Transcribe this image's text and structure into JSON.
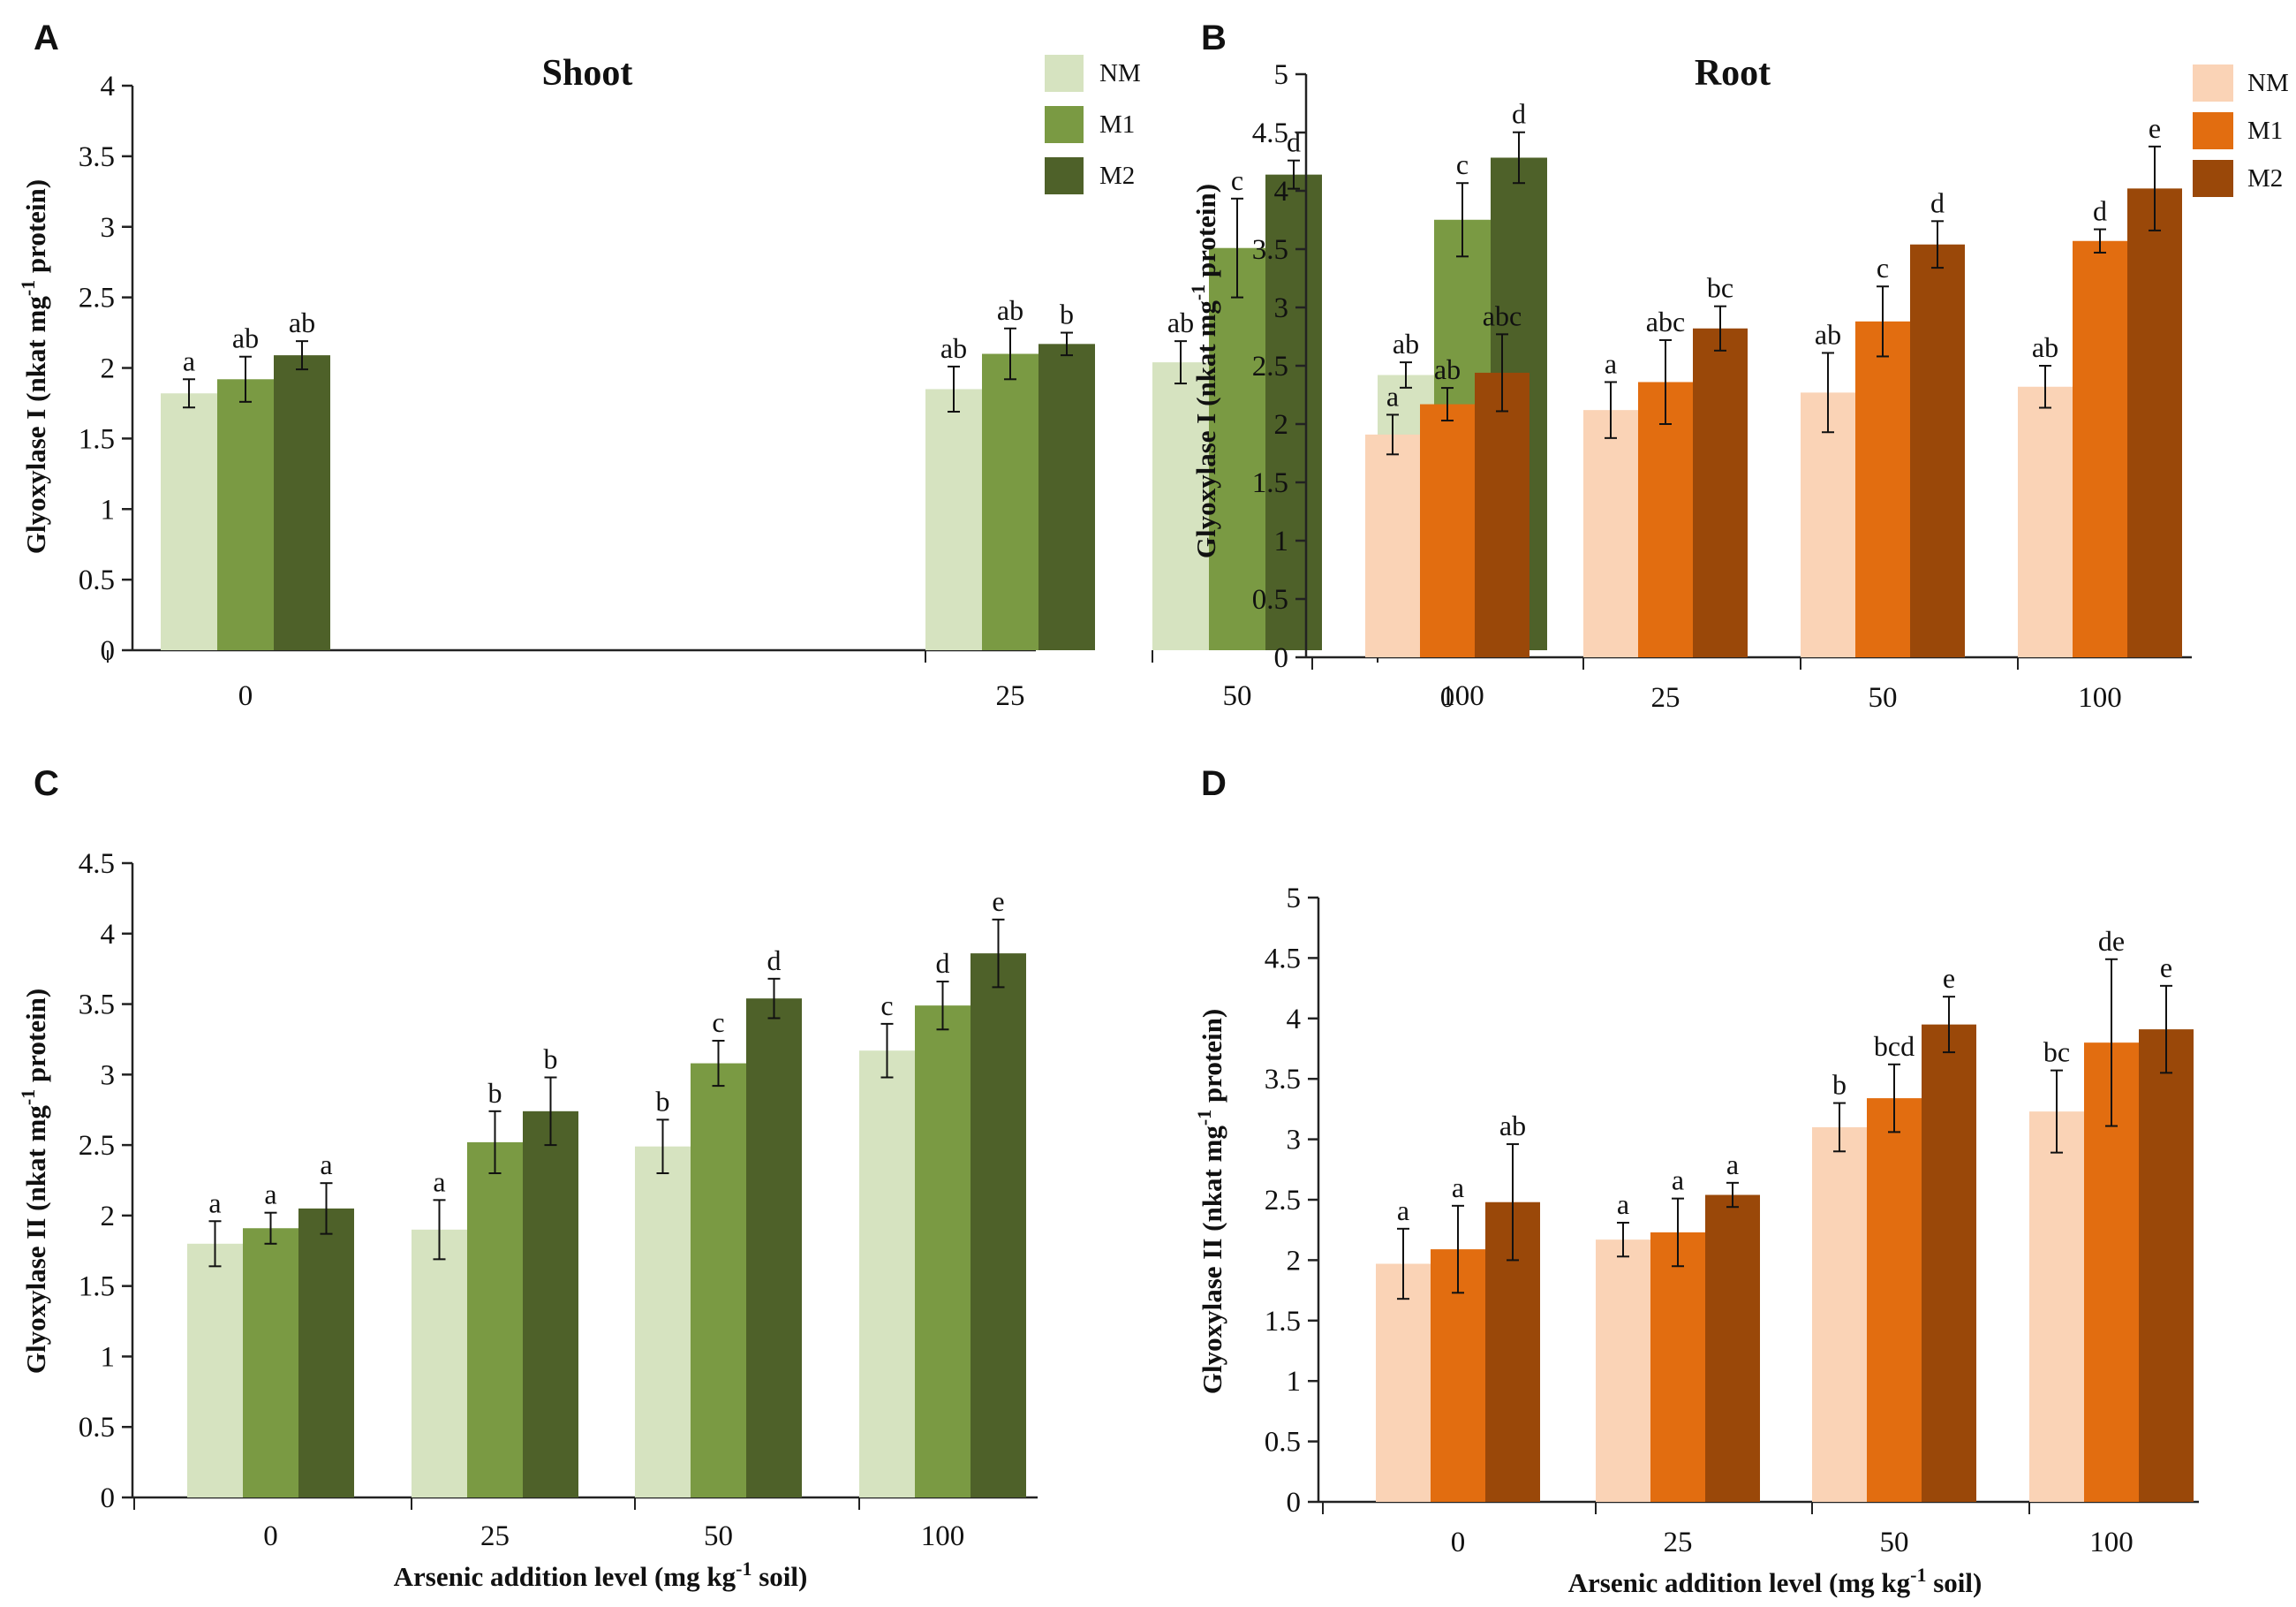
{
  "figure": {
    "x_title_main": "Arsenic addition level (mg kg",
    "x_title_sup": "-1",
    "x_title_end": " soil)"
  },
  "chart_data": [
    {
      "type": "bar",
      "panel": "A",
      "title": "Shoot",
      "ylabel_main": "Glyoxylase I (nkat mg",
      "ylabel_sup": "-1",
      "ylabel_end": " protein)",
      "xlabel": "",
      "categories": [
        "0",
        "25",
        "50",
        "100"
      ],
      "ylim": [
        0,
        4
      ],
      "yticks": [
        "0",
        "0.5",
        "1",
        "1.5",
        "2",
        "2.5",
        "3",
        "3.5",
        "4"
      ],
      "legend": {
        "position": "top-right",
        "labels": [
          "NM",
          "M1",
          "M2"
        ]
      },
      "colors": [
        "#d6e3c0",
        "#7a9a43",
        "#4e6129"
      ],
      "series": [
        {
          "name": "NM",
          "values": [
            1.82,
            1.85,
            2.04,
            1.95
          ],
          "errors": [
            0.1,
            0.16,
            0.15,
            0.09
          ],
          "letters": [
            "a",
            "ab",
            "ab",
            "ab"
          ]
        },
        {
          "name": "M1",
          "values": [
            1.92,
            2.1,
            2.85,
            3.05
          ],
          "errors": [
            0.16,
            0.18,
            0.35,
            0.26
          ],
          "letters": [
            "ab",
            "ab",
            "c",
            "c"
          ]
        },
        {
          "name": "M2",
          "values": [
            2.09,
            2.17,
            3.37,
            3.49
          ],
          "errors": [
            0.1,
            0.08,
            0.1,
            0.18
          ],
          "letters": [
            "ab",
            "b",
            "d",
            "d"
          ]
        }
      ]
    },
    {
      "type": "bar",
      "panel": "B",
      "title": "Root",
      "ylabel_main": "Glyoxylase I (nkat mg",
      "ylabel_sup": "-1",
      "ylabel_end": " protein)",
      "xlabel": "",
      "categories": [
        "0",
        "25",
        "50",
        "100"
      ],
      "ylim": [
        0,
        5
      ],
      "yticks": [
        "0",
        "0.5",
        "1",
        "1.5",
        "2",
        "2.5",
        "3",
        "3.5",
        "4",
        "4.5",
        "5"
      ],
      "legend": {
        "position": "top-right",
        "labels": [
          "NM",
          "M1",
          "M2"
        ]
      },
      "colors": [
        "#fad3b6",
        "#e26d10",
        "#9a4809"
      ],
      "series": [
        {
          "name": "NM",
          "values": [
            1.91,
            2.12,
            2.27,
            2.32
          ],
          "errors": [
            0.17,
            0.24,
            0.34,
            0.18
          ],
          "letters": [
            "a",
            "a",
            "ab",
            "ab"
          ]
        },
        {
          "name": "M1",
          "values": [
            2.17,
            2.36,
            2.88,
            3.57
          ],
          "errors": [
            0.14,
            0.36,
            0.3,
            0.1
          ],
          "letters": [
            "ab",
            "abc",
            "c",
            "d"
          ]
        },
        {
          "name": "M2",
          "values": [
            2.44,
            2.82,
            3.54,
            4.02
          ],
          "errors": [
            0.33,
            0.19,
            0.2,
            0.36
          ],
          "letters": [
            "abc",
            "bc",
            "d",
            "e"
          ]
        }
      ]
    },
    {
      "type": "bar",
      "panel": "C",
      "title": "",
      "ylabel_main": "Glyoxylase II (nkat mg",
      "ylabel_sup": "-1",
      "ylabel_end": " protein)",
      "xlabel": "Arsenic addition level (mg kg-1 soil)",
      "categories": [
        "0",
        "25",
        "50",
        "100"
      ],
      "ylim": [
        0,
        4.5
      ],
      "yticks": [
        "0",
        "0.5",
        "1",
        "1.5",
        "2",
        "2.5",
        "3",
        "3.5",
        "4",
        "4.5"
      ],
      "legend": null,
      "colors": [
        "#d6e3c0",
        "#7a9a43",
        "#4e6129"
      ],
      "series": [
        {
          "name": "NM",
          "values": [
            1.8,
            1.9,
            2.49,
            3.17
          ],
          "errors": [
            0.16,
            0.21,
            0.19,
            0.19
          ],
          "letters": [
            "a",
            "a",
            "b",
            "c"
          ]
        },
        {
          "name": "M1",
          "values": [
            1.91,
            2.52,
            3.08,
            3.49
          ],
          "errors": [
            0.11,
            0.22,
            0.16,
            0.17
          ],
          "letters": [
            "a",
            "b",
            "c",
            "d"
          ]
        },
        {
          "name": "M2",
          "values": [
            2.05,
            2.74,
            3.54,
            3.86
          ],
          "errors": [
            0.18,
            0.24,
            0.14,
            0.24
          ],
          "letters": [
            "a",
            "b",
            "d",
            "e"
          ]
        }
      ]
    },
    {
      "type": "bar",
      "panel": "D",
      "title": "",
      "ylabel_main": "Glyoxylase II (nkat mg",
      "ylabel_sup": "-1",
      "ylabel_end": " protein)",
      "xlabel": "Arsenic addition level (mg kg-1 soil)",
      "categories": [
        "0",
        "25",
        "50",
        "100"
      ],
      "ylim": [
        0,
        5
      ],
      "yticks": [
        "0",
        "0.5",
        "1",
        "1.5",
        "2",
        "2.5",
        "3",
        "3.5",
        "4",
        "4.5",
        "5"
      ],
      "legend": null,
      "colors": [
        "#fad3b6",
        "#e26d10",
        "#9a4809"
      ],
      "series": [
        {
          "name": "NM",
          "values": [
            1.97,
            2.17,
            3.1,
            3.23
          ],
          "errors": [
            0.29,
            0.14,
            0.2,
            0.34
          ],
          "letters": [
            "a",
            "a",
            "b",
            "bc"
          ]
        },
        {
          "name": "M1",
          "values": [
            2.09,
            2.23,
            3.34,
            3.8
          ],
          "errors": [
            0.36,
            0.28,
            0.28,
            0.69
          ],
          "letters": [
            "a",
            "a",
            "bcd",
            "de"
          ]
        },
        {
          "name": "M2",
          "values": [
            2.48,
            2.54,
            3.95,
            3.91
          ],
          "errors": [
            0.48,
            0.1,
            0.23,
            0.36
          ],
          "letters": [
            "ab",
            "a",
            "e",
            "e"
          ]
        }
      ]
    }
  ]
}
